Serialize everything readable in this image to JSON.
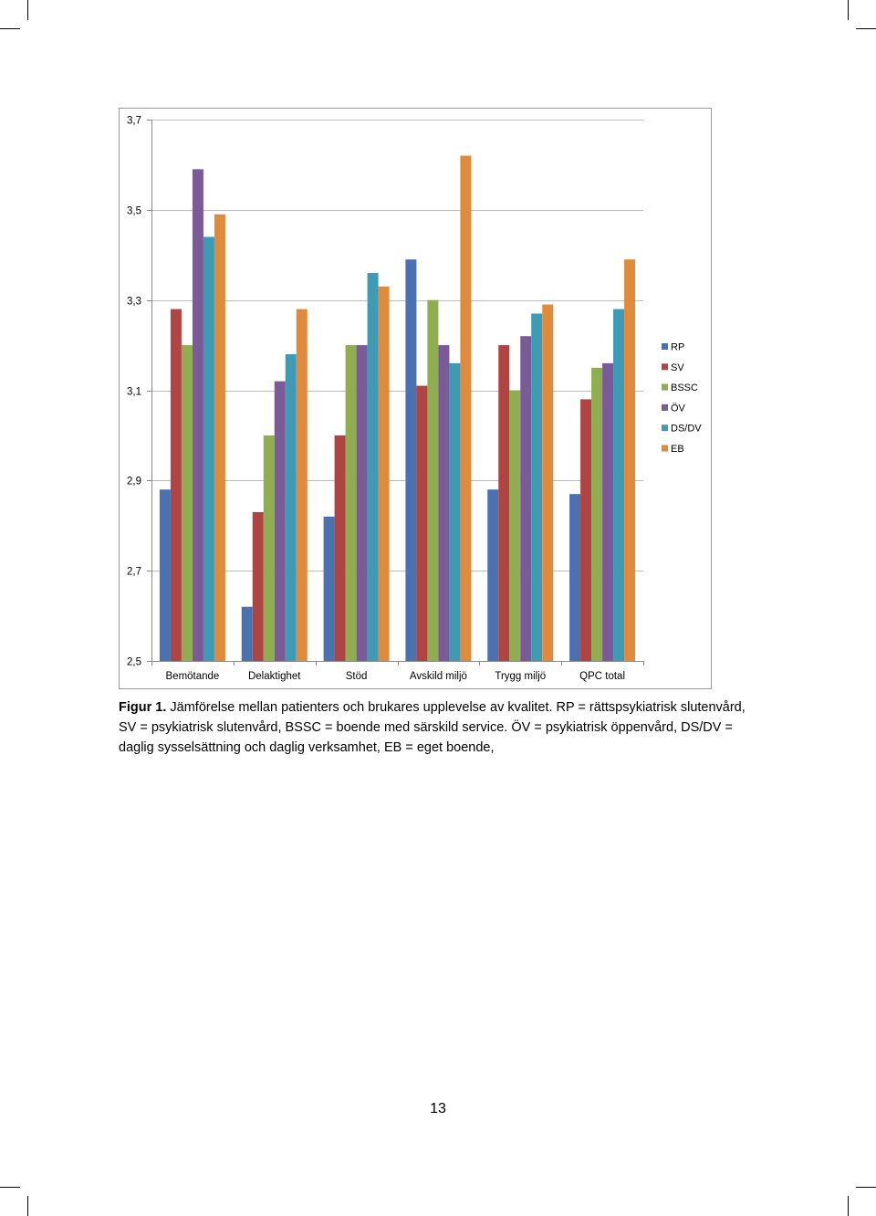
{
  "caption": {
    "label": "Figur 1.",
    "text": " Jämförelse mellan patienters och brukares upplevelse av kvalitet. RP = rättspsykiatrisk slutenvård, SV = psykiatrisk slutenvård, BSSC = boende med särskild service. ÖV = psykiatrisk öppenvård, DS/DV = daglig sysselsättning och daglig verksamhet, EB = eget boende,"
  },
  "page_number": "13",
  "chart_data": {
    "type": "bar",
    "title": "",
    "xlabel": "",
    "ylabel": "",
    "ylim": [
      2.5,
      3.7
    ],
    "yticks": [
      "2,5",
      "2,7",
      "2,9",
      "3,1",
      "3,3",
      "3,5",
      "3,7"
    ],
    "ytick_values": [
      2.5,
      2.7,
      2.9,
      3.1,
      3.3,
      3.5,
      3.7
    ],
    "grid": true,
    "legend_position": "right",
    "categories": [
      "Bemötande",
      "Delaktighet",
      "Stöd",
      "Avskild miljö",
      "Trygg miljö",
      "QPC total"
    ],
    "series": [
      {
        "name": "RP",
        "color": "#4a72b0",
        "values": [
          2.88,
          2.62,
          2.82,
          3.39,
          2.88,
          2.87
        ]
      },
      {
        "name": "SV",
        "color": "#b04442",
        "values": [
          3.28,
          2.83,
          3.0,
          3.11,
          3.2,
          3.08
        ]
      },
      {
        "name": "BSSC",
        "color": "#8fae4f",
        "values": [
          3.2,
          3.0,
          3.2,
          3.3,
          3.1,
          3.15
        ]
      },
      {
        "name": "ÖV",
        "color": "#7a5b98",
        "values": [
          3.59,
          3.12,
          3.2,
          3.2,
          3.22,
          3.16
        ]
      },
      {
        "name": "DS/DV",
        "color": "#3e9bb5",
        "values": [
          3.44,
          3.18,
          3.36,
          3.16,
          3.27,
          3.28
        ]
      },
      {
        "name": "EB",
        "color": "#e08a3c",
        "values": [
          3.49,
          3.28,
          3.33,
          3.62,
          3.29,
          3.39
        ]
      }
    ]
  }
}
